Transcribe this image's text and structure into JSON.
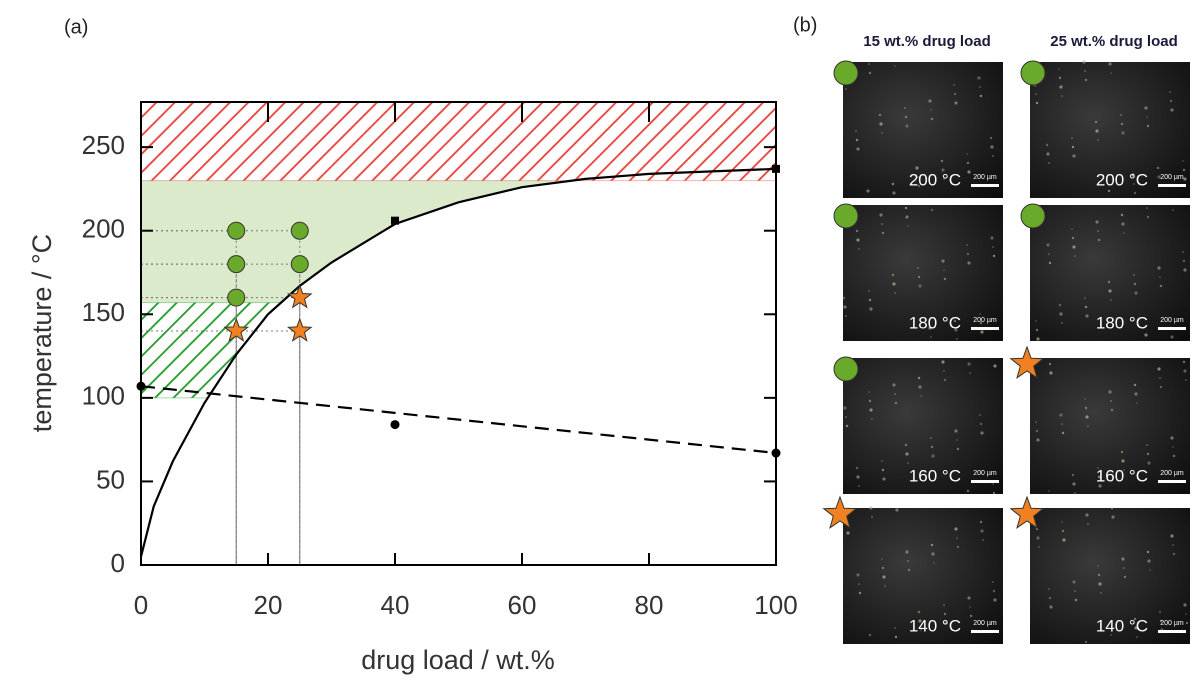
{
  "chart_data": {
    "type": "line",
    "label": "(a)",
    "x_label": "drug load / wt.%",
    "y_label": "temperature / °C",
    "xlim": [
      0,
      100
    ],
    "ylim": [
      0,
      277
    ],
    "xticks": [
      0,
      20,
      40,
      60,
      80,
      100
    ],
    "yticks": [
      0,
      50,
      100,
      150,
      200,
      250
    ],
    "regions": [
      {
        "y": [
          230,
          277
        ],
        "color": "#e8403a",
        "fill": "hatch",
        "bounded_by_curve": false
      },
      {
        "y": [
          157,
          230
        ],
        "color": "#6aaa2a",
        "fill": "solid",
        "bounded_by_curve": true
      },
      {
        "y": [
          100,
          157
        ],
        "color": "#1f9a2a",
        "fill": "hatch",
        "bounded_by_curve": true
      }
    ],
    "series": [
      {
        "style": "solid",
        "color": "#000000",
        "x": [
          0,
          2,
          5,
          10,
          15,
          20,
          25,
          30,
          40,
          50,
          60,
          70,
          80,
          100
        ],
        "values": [
          5,
          35,
          62,
          97,
          126,
          150,
          167,
          181,
          204,
          217,
          226,
          231,
          234,
          237
        ]
      },
      {
        "style": "dashed",
        "color": "#000000",
        "x": [
          0,
          100
        ],
        "values": [
          107,
          67
        ]
      },
      {
        "style": "square",
        "color": "#000000",
        "x": [
          40,
          100
        ],
        "values": [
          206,
          237
        ]
      },
      {
        "style": "dot",
        "color": "#000000",
        "x": [
          0,
          40,
          100
        ],
        "values": [
          107,
          84,
          67
        ]
      },
      {
        "style": "circle",
        "color": "#6aaa2a",
        "x": [
          15,
          15,
          15,
          25,
          25
        ],
        "values": [
          200,
          180,
          160,
          200,
          180
        ]
      },
      {
        "style": "star",
        "color": "#f08020",
        "x": [
          15,
          25,
          25
        ],
        "values": [
          140,
          160,
          140
        ]
      }
    ],
    "guides": true
  },
  "panel_b": {
    "label": "(b)",
    "columns": [
      "15 wt.%  drug load",
      "25 wt.%  drug load"
    ],
    "scale_bar": "200 µm",
    "marker_colors": {
      "circle": "#6aaa2a",
      "star": "#f08020"
    },
    "rows": [
      [
        {
          "temperature": "200 °C",
          "marker": "circle"
        },
        {
          "temperature": "200 °C",
          "marker": "circle"
        }
      ],
      [
        {
          "temperature": "180 °C",
          "marker": "circle"
        },
        {
          "temperature": "180 °C",
          "marker": "circle"
        }
      ],
      [
        {
          "temperature": "160 °C",
          "marker": "circle"
        },
        {
          "temperature": "160 °C",
          "marker": "star"
        }
      ],
      [
        {
          "temperature": "140 °C",
          "marker": "star"
        },
        {
          "temperature": "140 °C",
          "marker": "star"
        }
      ]
    ]
  }
}
